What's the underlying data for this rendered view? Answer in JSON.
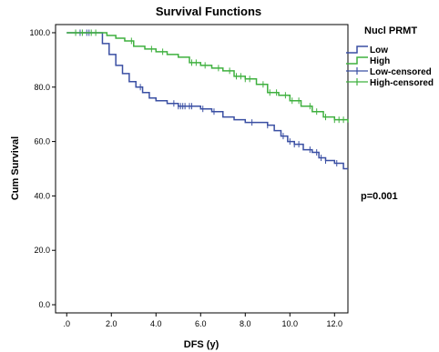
{
  "chart_data": {
    "type": "line",
    "title": "Survival Functions",
    "xlabel": "DFS (y)",
    "ylabel": "Cum Survival",
    "xlim": [
      -0.5,
      12.6
    ],
    "ylim": [
      -3,
      103
    ],
    "x_ticks": [
      0,
      2,
      4,
      6,
      8,
      10,
      12
    ],
    "x_tick_labels": [
      ".0",
      "2.0",
      "4.0",
      "6.0",
      "8.0",
      "10.0",
      "12.0"
    ],
    "y_ticks": [
      0,
      20,
      40,
      60,
      80,
      100
    ],
    "y_tick_labels": [
      "0.0",
      "20.0",
      "40.0",
      "60.0",
      "80.0",
      "100.0"
    ],
    "legend_title": "Nucl PRMT",
    "legend_position": "top-right",
    "legend_entries": [
      {
        "label": "Low",
        "color": "#3a4fa3",
        "kind": "step"
      },
      {
        "label": "High",
        "color": "#3fb03f",
        "kind": "step"
      },
      {
        "label": "Low-censored",
        "color": "#3a4fa3",
        "kind": "censor"
      },
      {
        "label": "High-censored",
        "color": "#3fb03f",
        "kind": "censor"
      }
    ],
    "annotation": "p=0.001",
    "series": [
      {
        "name": "Low",
        "color": "#3a4fa3",
        "x": [
          0,
          1.4,
          1.6,
          1.9,
          2.2,
          2.5,
          2.8,
          3.1,
          3.4,
          3.7,
          4.0,
          4.5,
          5.0,
          5.5,
          6.0,
          6.5,
          7.0,
          7.5,
          8.0,
          8.5,
          9.0,
          9.3,
          9.6,
          9.9,
          10.2,
          10.6,
          11.0,
          11.3,
          11.6,
          12.0,
          12.4,
          12.6
        ],
        "y": [
          100,
          100,
          96,
          92,
          88,
          85,
          82,
          80,
          78,
          76,
          75,
          74,
          73,
          73,
          72,
          71,
          69,
          68,
          67,
          67,
          66,
          64,
          62,
          60,
          59,
          57,
          56,
          54,
          53,
          52,
          50,
          50
        ],
        "censored_x": [
          0.6,
          0.9,
          1.0,
          3.3,
          4.8,
          5.0,
          5.1,
          5.2,
          5.3,
          5.5,
          5.6,
          6.1,
          6.6,
          8.3,
          9.0,
          9.7,
          10.0,
          10.2,
          10.4,
          10.9,
          11.2,
          11.4,
          11.6,
          12.1
        ]
      },
      {
        "name": "High",
        "color": "#3fb03f",
        "x": [
          0,
          1.5,
          1.8,
          2.2,
          2.6,
          3.0,
          3.5,
          4.0,
          4.5,
          5.0,
          5.5,
          6.0,
          6.5,
          7.0,
          7.5,
          8.0,
          8.5,
          9.0,
          9.5,
          10.0,
          10.5,
          11.0,
          11.5,
          12.0,
          12.6
        ],
        "y": [
          100,
          100,
          99,
          98,
          97,
          95,
          94,
          93,
          92,
          91,
          89,
          88,
          87,
          86,
          84,
          83,
          81,
          78,
          77,
          75,
          73,
          71,
          69,
          68,
          67
        ],
        "censored_x": [
          0.4,
          0.7,
          1.1,
          1.3,
          2.9,
          3.8,
          4.3,
          5.6,
          5.8,
          6.2,
          6.8,
          7.3,
          7.6,
          7.8,
          8.0,
          8.2,
          8.8,
          9.1,
          9.4,
          9.8,
          10.1,
          10.4,
          10.9,
          11.2,
          11.6,
          12.0,
          12.2,
          12.4
        ]
      }
    ]
  }
}
